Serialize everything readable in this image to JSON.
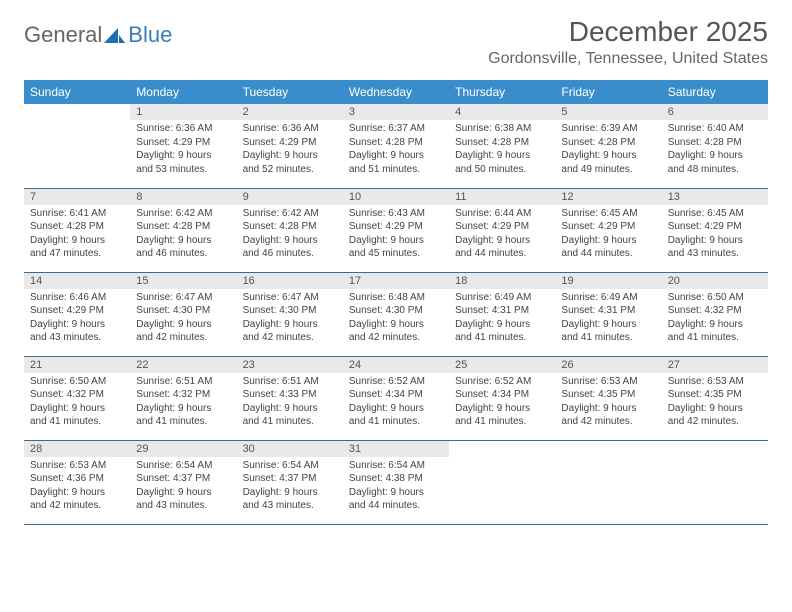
{
  "logo": {
    "text1": "General",
    "text2": "Blue"
  },
  "title": "December 2025",
  "location": "Gordonsville, Tennessee, United States",
  "colors": {
    "header_bg": "#3a8dcb",
    "header_text": "#ffffff",
    "row_border": "#2f6ea0",
    "daynum_bg": "#e9e9e9",
    "logo_accent": "#1f6fb0"
  },
  "weekdays": [
    "Sunday",
    "Monday",
    "Tuesday",
    "Wednesday",
    "Thursday",
    "Friday",
    "Saturday"
  ],
  "weeks": [
    [
      null,
      {
        "n": "1",
        "sr": "Sunrise: 6:36 AM",
        "ss": "Sunset: 4:29 PM",
        "d1": "Daylight: 9 hours",
        "d2": "and 53 minutes."
      },
      {
        "n": "2",
        "sr": "Sunrise: 6:36 AM",
        "ss": "Sunset: 4:29 PM",
        "d1": "Daylight: 9 hours",
        "d2": "and 52 minutes."
      },
      {
        "n": "3",
        "sr": "Sunrise: 6:37 AM",
        "ss": "Sunset: 4:28 PM",
        "d1": "Daylight: 9 hours",
        "d2": "and 51 minutes."
      },
      {
        "n": "4",
        "sr": "Sunrise: 6:38 AM",
        "ss": "Sunset: 4:28 PM",
        "d1": "Daylight: 9 hours",
        "d2": "and 50 minutes."
      },
      {
        "n": "5",
        "sr": "Sunrise: 6:39 AM",
        "ss": "Sunset: 4:28 PM",
        "d1": "Daylight: 9 hours",
        "d2": "and 49 minutes."
      },
      {
        "n": "6",
        "sr": "Sunrise: 6:40 AM",
        "ss": "Sunset: 4:28 PM",
        "d1": "Daylight: 9 hours",
        "d2": "and 48 minutes."
      }
    ],
    [
      {
        "n": "7",
        "sr": "Sunrise: 6:41 AM",
        "ss": "Sunset: 4:28 PM",
        "d1": "Daylight: 9 hours",
        "d2": "and 47 minutes."
      },
      {
        "n": "8",
        "sr": "Sunrise: 6:42 AM",
        "ss": "Sunset: 4:28 PM",
        "d1": "Daylight: 9 hours",
        "d2": "and 46 minutes."
      },
      {
        "n": "9",
        "sr": "Sunrise: 6:42 AM",
        "ss": "Sunset: 4:28 PM",
        "d1": "Daylight: 9 hours",
        "d2": "and 46 minutes."
      },
      {
        "n": "10",
        "sr": "Sunrise: 6:43 AM",
        "ss": "Sunset: 4:29 PM",
        "d1": "Daylight: 9 hours",
        "d2": "and 45 minutes."
      },
      {
        "n": "11",
        "sr": "Sunrise: 6:44 AM",
        "ss": "Sunset: 4:29 PM",
        "d1": "Daylight: 9 hours",
        "d2": "and 44 minutes."
      },
      {
        "n": "12",
        "sr": "Sunrise: 6:45 AM",
        "ss": "Sunset: 4:29 PM",
        "d1": "Daylight: 9 hours",
        "d2": "and 44 minutes."
      },
      {
        "n": "13",
        "sr": "Sunrise: 6:45 AM",
        "ss": "Sunset: 4:29 PM",
        "d1": "Daylight: 9 hours",
        "d2": "and 43 minutes."
      }
    ],
    [
      {
        "n": "14",
        "sr": "Sunrise: 6:46 AM",
        "ss": "Sunset: 4:29 PM",
        "d1": "Daylight: 9 hours",
        "d2": "and 43 minutes."
      },
      {
        "n": "15",
        "sr": "Sunrise: 6:47 AM",
        "ss": "Sunset: 4:30 PM",
        "d1": "Daylight: 9 hours",
        "d2": "and 42 minutes."
      },
      {
        "n": "16",
        "sr": "Sunrise: 6:47 AM",
        "ss": "Sunset: 4:30 PM",
        "d1": "Daylight: 9 hours",
        "d2": "and 42 minutes."
      },
      {
        "n": "17",
        "sr": "Sunrise: 6:48 AM",
        "ss": "Sunset: 4:30 PM",
        "d1": "Daylight: 9 hours",
        "d2": "and 42 minutes."
      },
      {
        "n": "18",
        "sr": "Sunrise: 6:49 AM",
        "ss": "Sunset: 4:31 PM",
        "d1": "Daylight: 9 hours",
        "d2": "and 41 minutes."
      },
      {
        "n": "19",
        "sr": "Sunrise: 6:49 AM",
        "ss": "Sunset: 4:31 PM",
        "d1": "Daylight: 9 hours",
        "d2": "and 41 minutes."
      },
      {
        "n": "20",
        "sr": "Sunrise: 6:50 AM",
        "ss": "Sunset: 4:32 PM",
        "d1": "Daylight: 9 hours",
        "d2": "and 41 minutes."
      }
    ],
    [
      {
        "n": "21",
        "sr": "Sunrise: 6:50 AM",
        "ss": "Sunset: 4:32 PM",
        "d1": "Daylight: 9 hours",
        "d2": "and 41 minutes."
      },
      {
        "n": "22",
        "sr": "Sunrise: 6:51 AM",
        "ss": "Sunset: 4:32 PM",
        "d1": "Daylight: 9 hours",
        "d2": "and 41 minutes."
      },
      {
        "n": "23",
        "sr": "Sunrise: 6:51 AM",
        "ss": "Sunset: 4:33 PM",
        "d1": "Daylight: 9 hours",
        "d2": "and 41 minutes."
      },
      {
        "n": "24",
        "sr": "Sunrise: 6:52 AM",
        "ss": "Sunset: 4:34 PM",
        "d1": "Daylight: 9 hours",
        "d2": "and 41 minutes."
      },
      {
        "n": "25",
        "sr": "Sunrise: 6:52 AM",
        "ss": "Sunset: 4:34 PM",
        "d1": "Daylight: 9 hours",
        "d2": "and 41 minutes."
      },
      {
        "n": "26",
        "sr": "Sunrise: 6:53 AM",
        "ss": "Sunset: 4:35 PM",
        "d1": "Daylight: 9 hours",
        "d2": "and 42 minutes."
      },
      {
        "n": "27",
        "sr": "Sunrise: 6:53 AM",
        "ss": "Sunset: 4:35 PM",
        "d1": "Daylight: 9 hours",
        "d2": "and 42 minutes."
      }
    ],
    [
      {
        "n": "28",
        "sr": "Sunrise: 6:53 AM",
        "ss": "Sunset: 4:36 PM",
        "d1": "Daylight: 9 hours",
        "d2": "and 42 minutes."
      },
      {
        "n": "29",
        "sr": "Sunrise: 6:54 AM",
        "ss": "Sunset: 4:37 PM",
        "d1": "Daylight: 9 hours",
        "d2": "and 43 minutes."
      },
      {
        "n": "30",
        "sr": "Sunrise: 6:54 AM",
        "ss": "Sunset: 4:37 PM",
        "d1": "Daylight: 9 hours",
        "d2": "and 43 minutes."
      },
      {
        "n": "31",
        "sr": "Sunrise: 6:54 AM",
        "ss": "Sunset: 4:38 PM",
        "d1": "Daylight: 9 hours",
        "d2": "and 44 minutes."
      },
      null,
      null,
      null
    ]
  ]
}
